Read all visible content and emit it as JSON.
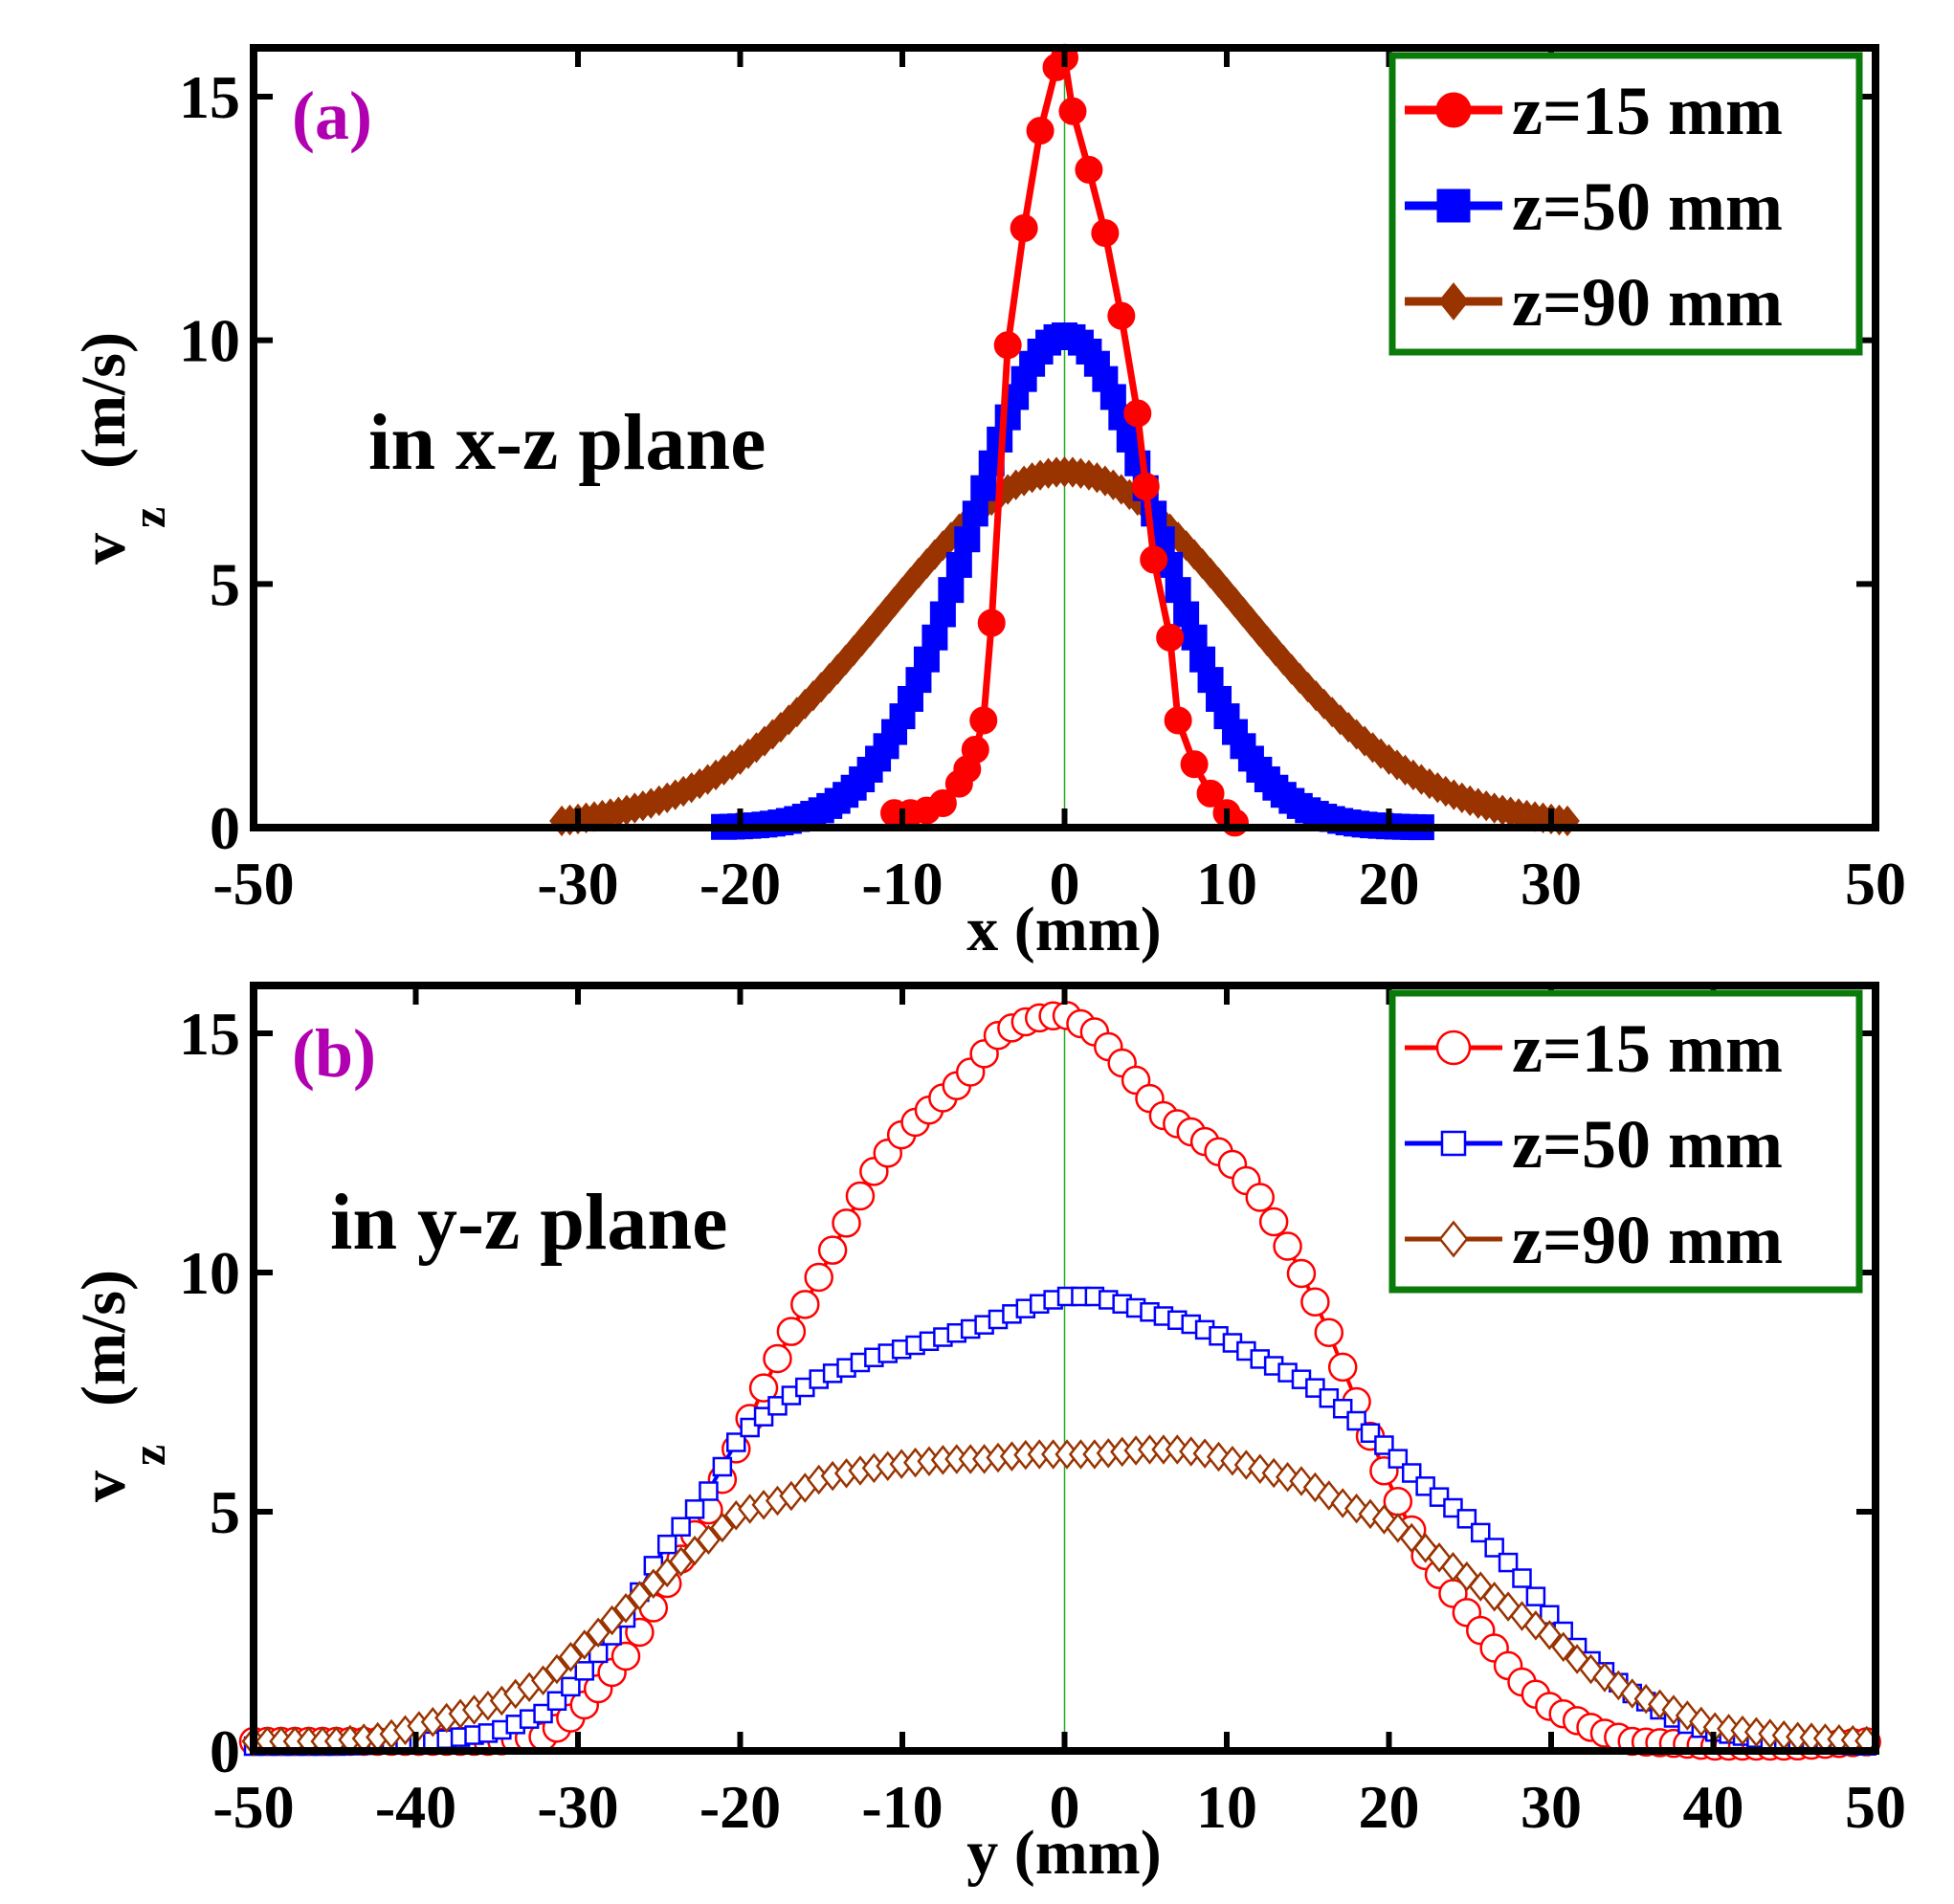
{
  "chart_data": [
    {
      "type": "line",
      "panel_label": "(a)",
      "annotation": "in x-z plane",
      "xlabel": "x (mm)",
      "ylabel_main": "v",
      "ylabel_sub": "z",
      "ylabel_unit": "(m/s)",
      "xlim": [
        -50,
        50
      ],
      "ylim": [
        0,
        16
      ],
      "xticks": [
        -50,
        -30,
        -20,
        -10,
        0,
        10,
        20,
        30,
        50
      ],
      "xtick_labels": [
        "-50",
        "-30",
        "-20",
        "-10",
        "0",
        "10",
        "20",
        "30",
        "50"
      ],
      "yticks": [
        0,
        5,
        10,
        15
      ],
      "ytick_labels": [
        "0",
        "5",
        "10",
        "15"
      ],
      "legend_position": "top-right",
      "series": [
        {
          "name": "z=15 mm",
          "color": "#ff0000",
          "marker": "circle",
          "filled": true,
          "x": [
            -10.5,
            -9.5,
            -8.5,
            -7.5,
            -6.5,
            -6,
            -5.5,
            -5,
            -4.5,
            -3.5,
            -2.5,
            -1.5,
            -0.5,
            0,
            0.5,
            1.5,
            2.5,
            3.5,
            4.5,
            5,
            5.5,
            6.5,
            7,
            8,
            9,
            10,
            10.5
          ],
          "y": [
            0.3,
            0.3,
            0.35,
            0.5,
            0.9,
            1.2,
            1.6,
            2.2,
            4.2,
            9.9,
            12.3,
            14.3,
            15.6,
            15.8,
            14.7,
            13.5,
            12.2,
            10.5,
            8.5,
            7.0,
            5.5,
            3.9,
            2.2,
            1.3,
            0.7,
            0.3,
            0.1
          ]
        },
        {
          "name": "z=50 mm",
          "color": "#0000ff",
          "marker": "square",
          "filled": true,
          "mu": 0,
          "sigma": 5.8,
          "peak": 10.1,
          "range": [
            -21,
            22
          ]
        },
        {
          "name": "z=90 mm",
          "color": "#993300",
          "marker": "diamond",
          "filled": true,
          "mu": 0,
          "sigma": 11,
          "peak": 7.3,
          "range": [
            -31,
            31
          ]
        }
      ]
    },
    {
      "type": "line",
      "panel_label": "(b)",
      "annotation": "in y-z plane",
      "xlabel": "y (mm)",
      "ylabel_main": "v",
      "ylabel_sub": "z",
      "ylabel_unit": "(m/s)",
      "xlim": [
        -50,
        50
      ],
      "ylim": [
        0,
        16
      ],
      "xticks": [
        -50,
        -40,
        -30,
        -20,
        -10,
        0,
        10,
        20,
        30,
        40,
        50
      ],
      "xtick_labels": [
        "-50",
        "-40",
        "-30",
        "-20",
        "-10",
        "0",
        "10",
        "20",
        "30",
        "40",
        "50"
      ],
      "yticks": [
        0,
        5,
        10,
        15
      ],
      "ytick_labels": [
        "0",
        "5",
        "10",
        "15"
      ],
      "legend_position": "top-right",
      "series": [
        {
          "name": "z=15 mm",
          "color": "#ff0000",
          "marker": "circle",
          "filled": false,
          "x": [
            -50,
            -45,
            -40,
            -35,
            -32,
            -30,
            -27,
            -25,
            -22,
            -20,
            -18,
            -15,
            -12,
            -10,
            -8,
            -6,
            -4,
            -2,
            0,
            2,
            4,
            6,
            8,
            10,
            12,
            14,
            16,
            18,
            20,
            22,
            25,
            28,
            30,
            33,
            35,
            38,
            40,
            45,
            50
          ],
          "y": [
            0.2,
            0.2,
            0.2,
            0.2,
            0.3,
            0.8,
            2.0,
            3.2,
            5.0,
            6.5,
            8.0,
            10.0,
            12.0,
            12.9,
            13.5,
            14.1,
            15.0,
            15.3,
            15.4,
            15.0,
            14.2,
            13.3,
            12.9,
            12.4,
            11.6,
            10.4,
            9.0,
            7.3,
            5.6,
            4.2,
            2.8,
            1.5,
            0.9,
            0.4,
            0.2,
            0.15,
            0.1,
            0.1,
            0.2
          ]
        },
        {
          "name": "z=50 mm",
          "color": "#0000ff",
          "marker": "square",
          "filled": false,
          "x": [
            -50,
            -45,
            -40,
            -35,
            -32,
            -30,
            -27,
            -25,
            -22,
            -20,
            -17,
            -15,
            -12,
            -10,
            -8,
            -5,
            -2,
            0,
            2,
            5,
            8,
            10,
            12,
            15,
            17,
            20,
            22,
            25,
            28,
            30,
            32,
            35,
            38,
            40,
            45,
            50
          ],
          "y": [
            0.1,
            0.1,
            0.15,
            0.4,
            0.8,
            1.5,
            2.8,
            4.1,
            5.4,
            6.6,
            7.4,
            7.8,
            8.2,
            8.4,
            8.6,
            8.9,
            9.3,
            9.5,
            9.5,
            9.2,
            8.9,
            8.6,
            8.2,
            7.7,
            7.2,
            6.3,
            5.6,
            4.8,
            3.7,
            2.8,
            2.0,
            1.2,
            0.6,
            0.4,
            0.15,
            0.1
          ]
        },
        {
          "name": "z=90 mm",
          "color": "#993300",
          "marker": "diamond",
          "filled": false,
          "x": [
            -50,
            -45,
            -42,
            -40,
            -37,
            -35,
            -32,
            -30,
            -27,
            -25,
            -22,
            -20,
            -17,
            -15,
            -12,
            -10,
            -7,
            -5,
            -2,
            0,
            2,
            5,
            7,
            9,
            12,
            15,
            17,
            20,
            22,
            25,
            27,
            30,
            32,
            35,
            38,
            40,
            45,
            50
          ],
          "y": [
            0.2,
            0.2,
            0.3,
            0.5,
            0.8,
            1.0,
            1.5,
            2.1,
            3.0,
            3.6,
            4.4,
            5.0,
            5.3,
            5.7,
            5.9,
            6.0,
            6.1,
            6.1,
            6.2,
            6.2,
            6.2,
            6.3,
            6.3,
            6.2,
            5.9,
            5.6,
            5.2,
            4.8,
            4.3,
            3.6,
            3.1,
            2.4,
            1.8,
            1.2,
            0.8,
            0.5,
            0.3,
            0.2
          ]
        }
      ]
    }
  ]
}
